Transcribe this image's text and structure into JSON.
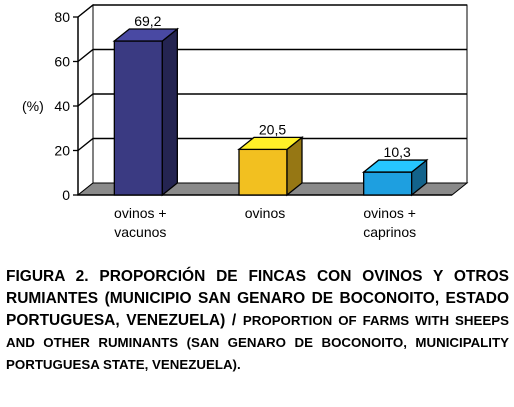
{
  "chart_data": {
    "type": "bar",
    "categories": [
      "ovinos +\nvacunos",
      "ovinos",
      "ovinos +\ncaprinos"
    ],
    "values": [
      69.2,
      20.5,
      10.3
    ],
    "value_labels": [
      "69,2",
      "20,5",
      "10,3"
    ],
    "colors": [
      "#3a3a82",
      "#f2c020",
      "#1e9fe0"
    ],
    "ylabel": "(%)",
    "ylim": [
      0,
      80
    ],
    "yticks": [
      0,
      20,
      40,
      60,
      80
    ],
    "grid": true,
    "style": "3d"
  },
  "caption": {
    "spanish": "FIGURA 2. PROPORCIÓN DE FINCAS CON OVINOS Y OTROS RUMIANTES (MUNICIPIO SAN GENARO DE BOCONOITO, ESTADO PORTUGUESA, VENEZUELA) /",
    "english": "PROPORTION OF FARMS WITH SHEEPS AND OTHER RUMINANTS (SAN GENARO DE BOCONOITO, MUNICIPALITY PORTUGUESA STATE, VENEZUELA)."
  }
}
